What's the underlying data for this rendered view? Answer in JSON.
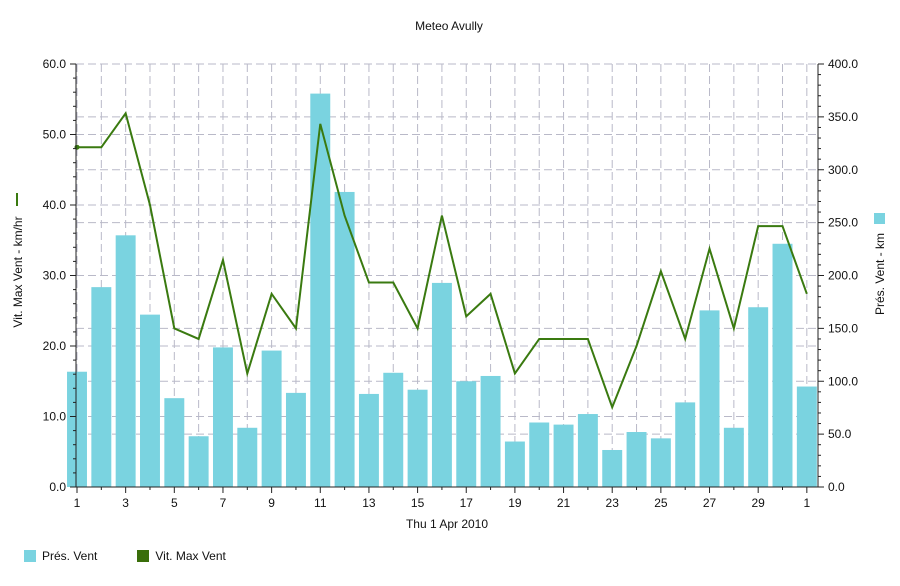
{
  "chart_data": {
    "type": "bar+line",
    "title": "Meteo  Avully",
    "xlabel": "Thu 1 Apr 2010",
    "ylabel_left": "Vit. Max Vent - km/hr",
    "ylabel_right": "Prés. Vent - km",
    "ylim_left": [
      0,
      60
    ],
    "ylim_right": [
      0,
      400
    ],
    "yticks_left": [
      "0.0",
      "10.0",
      "20.0",
      "30.0",
      "40.0",
      "50.0",
      "60.0"
    ],
    "yticks_right": [
      "0.0",
      "50.0",
      "100.0",
      "150.0",
      "200.0",
      "250.0",
      "300.0",
      "350.0",
      "400.0"
    ],
    "x": [
      1,
      2,
      3,
      4,
      5,
      6,
      7,
      8,
      9,
      10,
      11,
      12,
      13,
      14,
      15,
      16,
      17,
      18,
      19,
      20,
      21,
      22,
      23,
      24,
      25,
      26,
      27,
      28,
      29,
      30,
      31
    ],
    "xtick_labels": [
      "1",
      "3",
      "5",
      "7",
      "9",
      "11",
      "13",
      "15",
      "17",
      "19",
      "21",
      "23",
      "25",
      "27",
      "29",
      "1"
    ],
    "grid": true,
    "legend_position": "bottom-left",
    "series": [
      {
        "name": "Prés. Vent",
        "kind": "bar",
        "axis": "right",
        "color": "#7ad3e0",
        "values": [
          109,
          189,
          238,
          163,
          84,
          48,
          132,
          56,
          129,
          89,
          372,
          279,
          88,
          108,
          92,
          193,
          100,
          105,
          43,
          61,
          59,
          69,
          35,
          52,
          46,
          80,
          167,
          56,
          170,
          230,
          95
        ]
      },
      {
        "name": "Vit. Max Vent",
        "kind": "line",
        "axis": "left",
        "color": "#3a7a10",
        "values": [
          48.2,
          48.2,
          53.0,
          40.0,
          22.5,
          21.0,
          32.2,
          16.1,
          27.4,
          22.5,
          51.5,
          38.5,
          29.0,
          29.0,
          22.5,
          38.5,
          24.2,
          27.4,
          16.1,
          21.0,
          21.0,
          21.0,
          11.3,
          20.0,
          30.6,
          21.0,
          33.8,
          22.5,
          37.0,
          37.0,
          27.4
        ]
      }
    ]
  },
  "legend": {
    "items": [
      {
        "label": "Prés. Vent",
        "color": "#7ad3e0"
      },
      {
        "label": "Vit. Max Vent",
        "color": "#3a6e0a"
      }
    ]
  }
}
